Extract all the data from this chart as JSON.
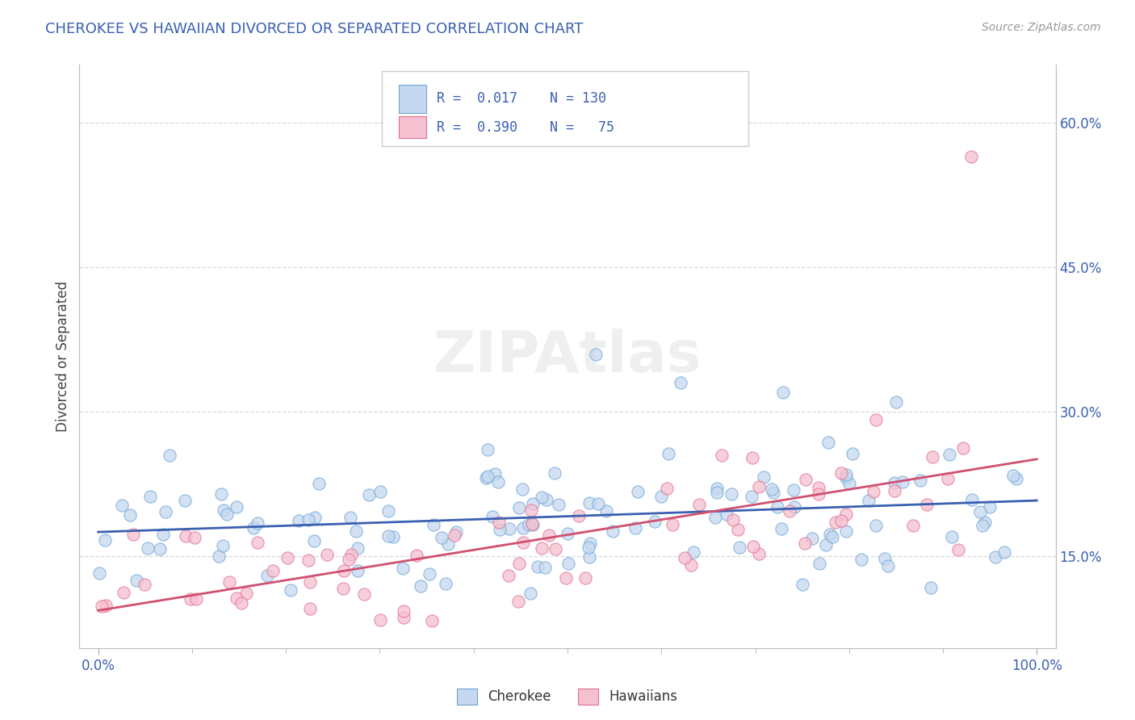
{
  "title": "CHEROKEE VS HAWAIIAN DIVORCED OR SEPARATED CORRELATION CHART",
  "source_text": "Source: ZipAtlas.com",
  "ylabel": "Divorced or Separated",
  "cherokee_face_color": "#c5d8ef",
  "cherokee_edge_color": "#6ea6d8",
  "hawaiian_face_color": "#f5c0cf",
  "hawaiian_edge_color": "#e07090",
  "cherokee_line_color": "#3a60b0",
  "hawaiian_line_color": "#d05070",
  "legend_text_color": "#3a60b0",
  "title_color": "#3a60b0",
  "source_color": "#999999",
  "tick_color": "#3a60b0",
  "grid_color": "#d8d8d8",
  "background_color": "#ffffff",
  "watermark": "ZIPAtlas",
  "r_cherokee": 0.017,
  "n_cherokee": 130,
  "r_hawaiian": 0.39,
  "n_hawaiian": 75,
  "xlim": [
    -0.02,
    1.02
  ],
  "ylim": [
    0.055,
    0.66
  ],
  "y_ticks": [
    0.15,
    0.3,
    0.45,
    0.6
  ],
  "y_tick_labels": [
    "15.0%",
    "30.0%",
    "45.0%",
    "60.0%"
  ],
  "x_ticks": [
    0.0,
    1.0
  ],
  "x_tick_labels": [
    "0.0%",
    "100.0%"
  ],
  "legend_r1": "R = 0.017",
  "legend_n1": "N = 130",
  "legend_r2": "R = 0.390",
  "legend_n2": "N =  75"
}
